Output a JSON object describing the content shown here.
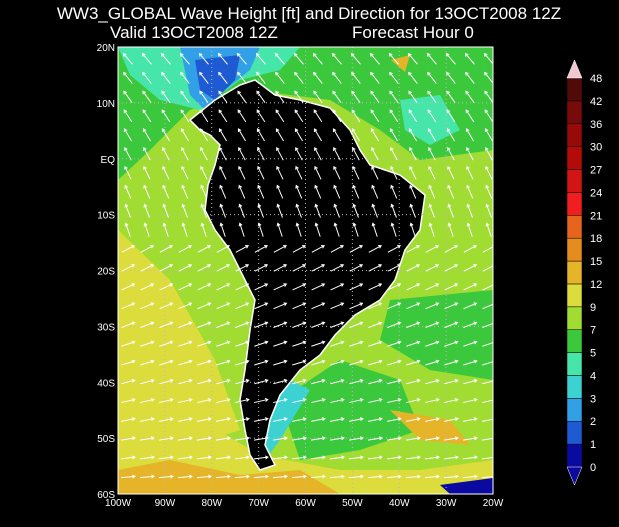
{
  "header": {
    "title": "WW3_GLOBAL Wave Height [ft] and Direction for 13OCT2008 12Z",
    "valid": "Valid 13OCT2008 12Z",
    "forecast": "Forecast Hour 0"
  },
  "map": {
    "lat_labels": [
      "20N",
      "10N",
      "EQ",
      "10S",
      "20S",
      "30S",
      "40S",
      "50S",
      "60S"
    ],
    "lon_labels": [
      "100W",
      "90W",
      "80W",
      "70W",
      "60W",
      "50W",
      "40W",
      "30W",
      "20W"
    ]
  },
  "colorbar": {
    "levels": [
      "0",
      "1",
      "2",
      "3",
      "4",
      "5",
      "7",
      "9",
      "12",
      "15",
      "18",
      "21",
      "24",
      "27",
      "30",
      "36",
      "42",
      "48"
    ],
    "colors": [
      "#0a0aa0",
      "#1e5ad2",
      "#32a0e6",
      "#3cd2d2",
      "#46e6aa",
      "#3cc83c",
      "#a0dc32",
      "#dcdc3c",
      "#e6b428",
      "#e68c1e",
      "#e6641e",
      "#f01e1e",
      "#d21414",
      "#b40a0a",
      "#960a0a",
      "#780a0a",
      "#500a0a"
    ]
  }
}
